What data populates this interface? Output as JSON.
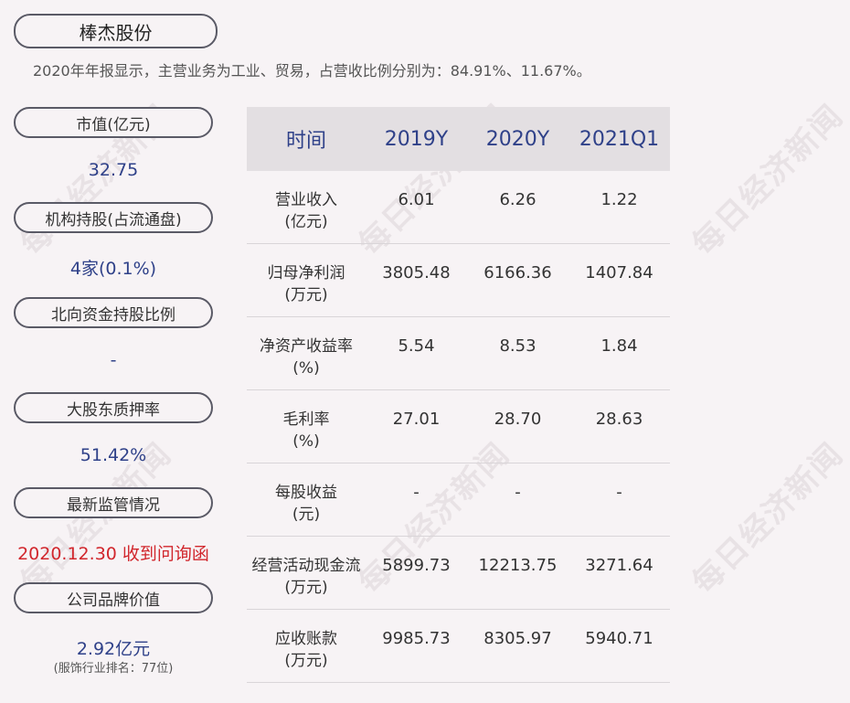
{
  "header": {
    "company": "棒杰股份",
    "summary": "2020年年报显示，主营业务为工业、贸易，占营收比例分别为：84.91%、11.67%。"
  },
  "left_panel": {
    "market_cap_label": "市值(亿元)",
    "market_cap_value": "32.75",
    "institution_label": "机构持股(占流通盘)",
    "institution_value": "4家(0.1%)",
    "northbound_label": "北向资金持股比例",
    "northbound_value": "-",
    "pledge_label": "大股东质押率",
    "pledge_value": "51.42%",
    "regulation_label": "最新监管情况",
    "regulation_value": "2020.12.30 收到问询函",
    "brand_label": "公司品牌价值",
    "brand_value": "2.92亿元",
    "brand_rank": "(服饰行业排名：77位)"
  },
  "table": {
    "headers": [
      "时间",
      "2019Y",
      "2020Y",
      "2021Q1"
    ],
    "rows": [
      {
        "label": "营业收入",
        "unit": "(亿元)",
        "values": [
          "6.01",
          "6.26",
          "1.22"
        ]
      },
      {
        "label": "归母净利润",
        "unit": "(万元)",
        "values": [
          "3805.48",
          "6166.36",
          "1407.84"
        ]
      },
      {
        "label": "净资产收益率",
        "unit": "(%)",
        "values": [
          "5.54",
          "8.53",
          "1.84"
        ]
      },
      {
        "label": "毛利率",
        "unit": "(%)",
        "values": [
          "27.01",
          "28.70",
          "28.63"
        ]
      },
      {
        "label": "每股收益",
        "unit": "(元)",
        "values": [
          "-",
          "-",
          "-"
        ]
      },
      {
        "label": "经营活动现金流",
        "unit": "(万元)",
        "values": [
          "5899.73",
          "12213.75",
          "3271.64"
        ]
      },
      {
        "label": "应收账款",
        "unit": "(万元)",
        "values": [
          "9985.73",
          "8305.97",
          "5940.71"
        ]
      }
    ]
  },
  "watermark": "每日经济新闻"
}
